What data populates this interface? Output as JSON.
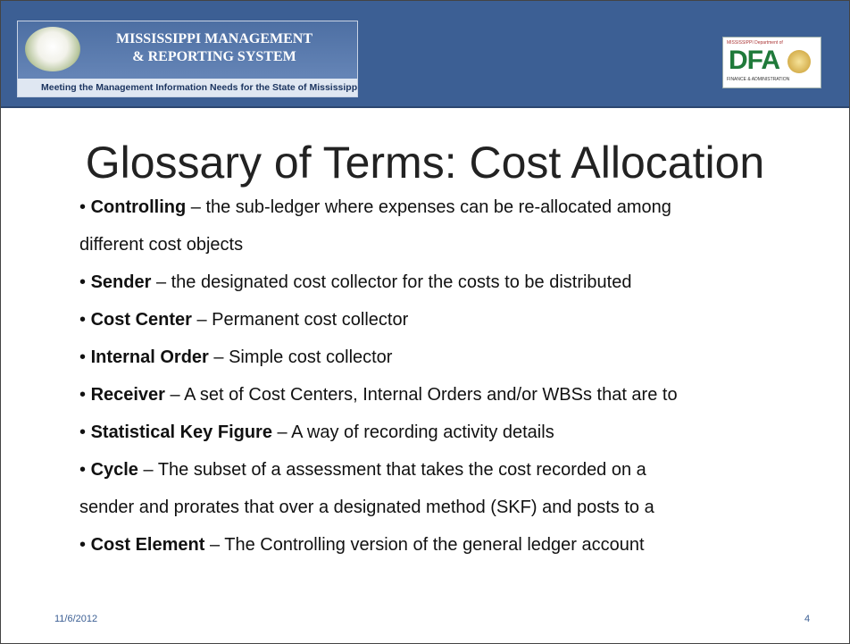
{
  "header": {
    "logo_title_line1": "MISSISSIPPI MANAGEMENT",
    "logo_title_line2": "& REPORTING SYSTEM",
    "tagline": "Meeting the Management Information Needs for the State of Mississippi",
    "dfa_top": "MISSISSIPPI Department of",
    "dfa_mark": "DFA",
    "dfa_bottom": "FINANCE & ADMINISTRATION"
  },
  "slide": {
    "title": "Glossary of Terms: Cost Allocation",
    "items": [
      {
        "term": "Controlling",
        "definition": "– the sub-ledger where expenses can be re-allocated among",
        "continuation": "different cost objects"
      },
      {
        "term": "Sender",
        "definition": "– the designated cost collector for the costs to be distributed"
      },
      {
        "term": "Cost Center",
        "definition": "– Permanent cost collector"
      },
      {
        "term": "Internal Order",
        "definition": "– Simple cost collector"
      },
      {
        "term": "Receiver",
        "definition": "– A set of Cost Centers, Internal Orders and/or WBSs that are to"
      },
      {
        "term": "Statistical Key Figure",
        "definition": "– A way of recording activity details"
      },
      {
        "term": "Cycle",
        "definition": "– The subset of a assessment that takes the cost recorded on a",
        "continuation": "sender and prorates that over a designated method (SKF) and posts to a"
      },
      {
        "term": "Cost Element",
        "definition": "– The Controlling version of the general ledger account"
      }
    ]
  },
  "footer": {
    "date": "11/6/2012",
    "page": "4"
  }
}
